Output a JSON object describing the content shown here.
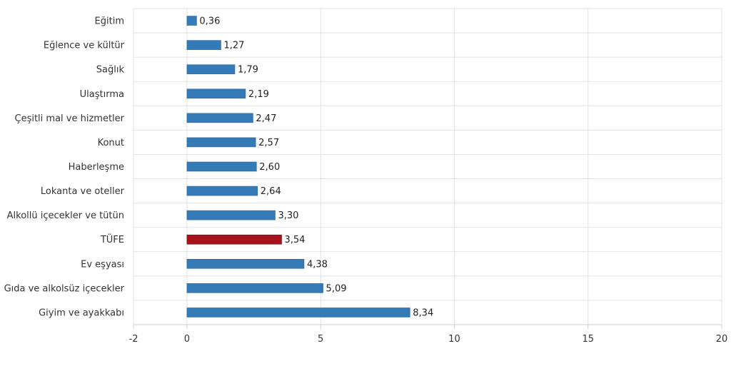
{
  "chart_data": {
    "type": "bar",
    "orientation": "horizontal",
    "title": "",
    "xlabel": "",
    "ylabel": "",
    "categories": [
      "Eğitim",
      "Eğlence ve kültür",
      "Sağlık",
      "Ulaştırma",
      "Çeşitli mal ve hizmetler",
      "Konut",
      "Haberleşme",
      "Lokanta ve oteller",
      "Alkollü içecekler ve tütün",
      "TÜFE",
      "Ev eşyası",
      "Gıda ve alkolsüz içecekler",
      "Giyim ve ayakkabı"
    ],
    "values": [
      0.36,
      1.27,
      1.79,
      2.19,
      2.47,
      2.57,
      2.6,
      2.64,
      3.3,
      3.54,
      4.38,
      5.09,
      8.34
    ],
    "value_labels": [
      "0,36",
      "1,27",
      "1,79",
      "2,19",
      "2,47",
      "2,57",
      "2,60",
      "2,64",
      "3,30",
      "3,54",
      "4,38",
      "5,09",
      "8,34"
    ],
    "highlight_category": "TÜFE",
    "colors": {
      "bar": "#337ab7",
      "highlight": "#a8121c",
      "grid": "#e3e3e3",
      "axis": "#cccccc"
    },
    "xlim": [
      -2,
      20
    ],
    "xticks": [
      -2,
      0,
      5,
      10,
      15,
      20
    ],
    "xtick_labels": [
      "-2",
      "0",
      "5",
      "10",
      "15",
      "20"
    ],
    "grid": true,
    "legend": "none"
  }
}
